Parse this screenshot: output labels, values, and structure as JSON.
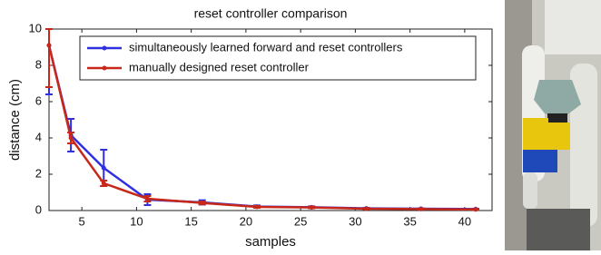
{
  "chart_data": {
    "type": "line",
    "title": "reset controller comparison",
    "xlabel": "samples",
    "ylabel": "distance (cm)",
    "x": [
      2,
      4,
      7,
      11,
      16,
      21,
      26,
      31,
      36,
      41
    ],
    "series": [
      {
        "name": "simultaneously learned forward and reset controllers",
        "color": "#3030e0",
        "values": [
          9.1,
          4.15,
          2.35,
          0.6,
          0.45,
          0.22,
          0.18,
          0.12,
          0.1,
          0.08
        ],
        "errors": [
          2.7,
          0.9,
          1.0,
          0.3,
          0.12,
          0.06,
          0.05,
          0.03,
          0.02,
          0.02
        ]
      },
      {
        "name": "manually designed reset controller",
        "color": "#c8281a",
        "values": [
          9.1,
          4.0,
          1.5,
          0.65,
          0.42,
          0.2,
          0.17,
          0.1,
          0.08,
          0.06
        ],
        "errors": [
          2.3,
          0.3,
          0.15,
          0.15,
          0.08,
          0.05,
          0.04,
          0.03,
          0.02,
          0.02
        ]
      }
    ],
    "xlim": [
      2,
      42.5
    ],
    "ylim": [
      0,
      10
    ],
    "xticks": [
      5,
      10,
      15,
      20,
      25,
      30,
      35,
      40
    ],
    "yticks": [
      0,
      2,
      4,
      6,
      8,
      10
    ]
  }
}
